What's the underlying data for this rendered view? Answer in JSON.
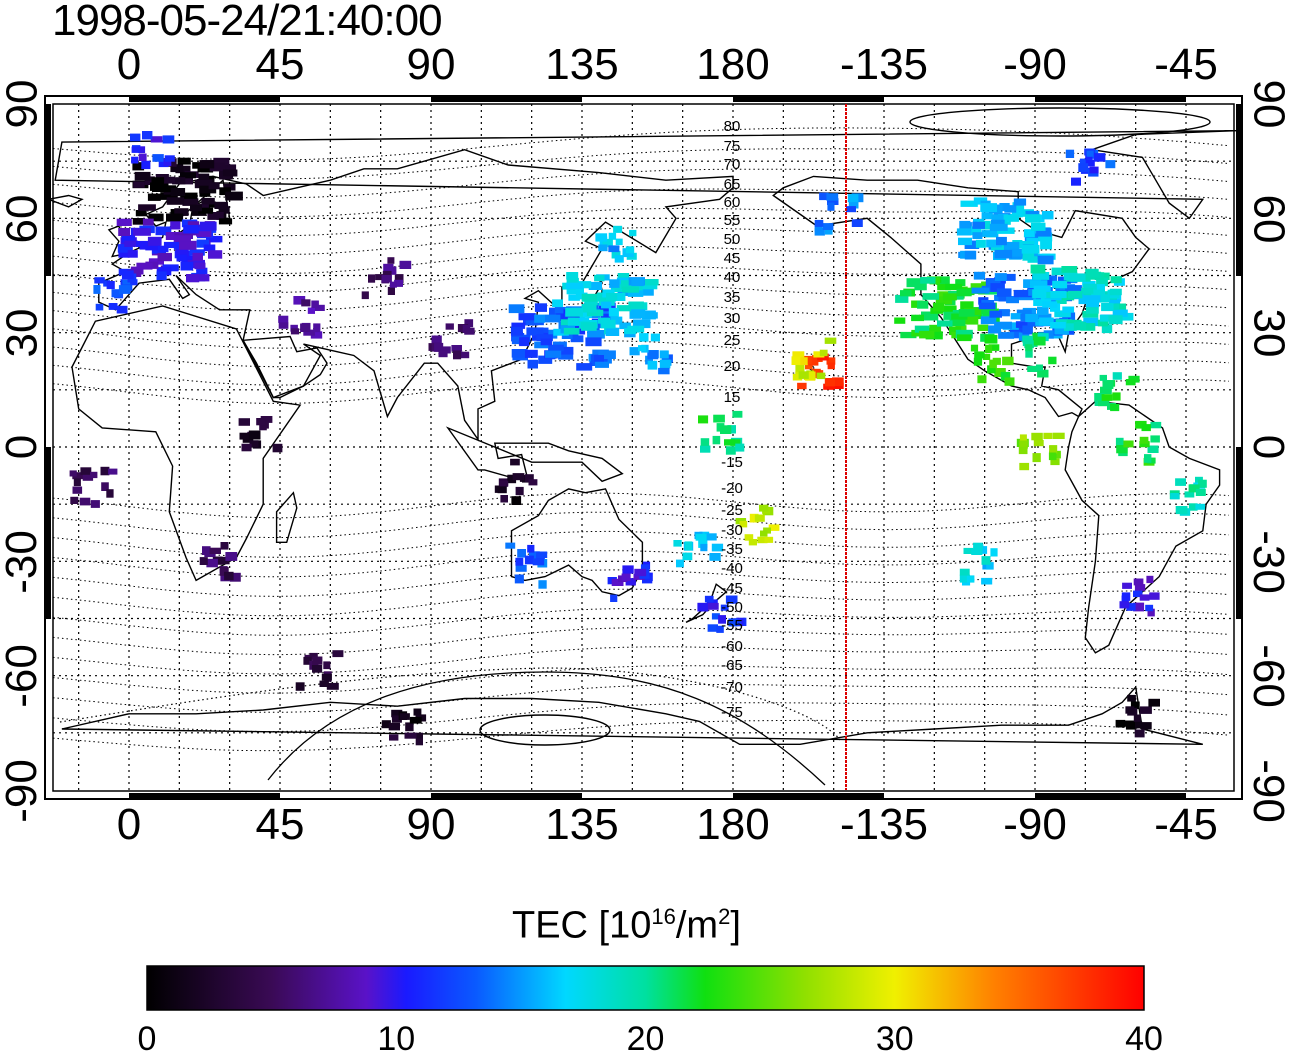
{
  "title": "1998-05-24/21:40:00",
  "lon_ticks": [
    "0",
    "45",
    "90",
    "135",
    "180",
    "-135",
    "-90",
    "-45"
  ],
  "lat_ticks": [
    "90",
    "60",
    "30",
    "0",
    "-30",
    "-60",
    "-90"
  ],
  "contour_labels_north": [
    "80",
    "75",
    "70",
    "65",
    "60",
    "55",
    "50",
    "45",
    "40",
    "35",
    "30",
    "25",
    "20",
    "15"
  ],
  "contour_labels_south": [
    "-15",
    "-20",
    "-25",
    "-30",
    "-35",
    "-40",
    "-45",
    "-50",
    "-55",
    "-60",
    "-65",
    "-70",
    "-75"
  ],
  "colorbar": {
    "label_main": "TEC  [10",
    "label_sup1": "16",
    "label_mid": "/m",
    "label_sup2": "2",
    "label_end": "]",
    "ticks": [
      "0",
      "10",
      "20",
      "30",
      "40"
    ],
    "min": 0,
    "max": 40
  },
  "colors": {
    "terminator": "#dd0000",
    "coast": "#000000"
  },
  "tec_clusters": [
    {
      "region": "north-europe",
      "lon": 15,
      "lat": 68,
      "tec": 1
    },
    {
      "region": "europe",
      "lon": 10,
      "lat": 52,
      "tec": 10
    },
    {
      "region": "europe-west",
      "lon": -5,
      "lat": 42,
      "tec": 12
    },
    {
      "region": "greenland-atlantic",
      "lon": 5,
      "lat": 80,
      "tec": 11
    },
    {
      "region": "central-asia",
      "lon": 75,
      "lat": 45,
      "tec": 6
    },
    {
      "region": "middle-east",
      "lon": 50,
      "lat": 35,
      "tec": 7
    },
    {
      "region": "india-tibet",
      "lon": 95,
      "lat": 30,
      "tec": 5
    },
    {
      "region": "east-asia",
      "lon": 127,
      "lat": 30,
      "tec": 13
    },
    {
      "region": "japan",
      "lon": 140,
      "lat": 38,
      "tec": 17
    },
    {
      "region": "siberia-east",
      "lon": 145,
      "lat": 55,
      "tec": 16
    },
    {
      "region": "pacific-north",
      "lon": 155,
      "lat": 25,
      "tec": 15
    },
    {
      "region": "hawaii",
      "lon": -155,
      "lat": 20,
      "tec": 38
    },
    {
      "region": "hawaii-edge",
      "lon": -158,
      "lat": 24,
      "tec": 29
    },
    {
      "region": "pacific-mid",
      "lon": 175,
      "lat": 5,
      "tec": 21
    },
    {
      "region": "pacific-south",
      "lon": 185,
      "lat": -20,
      "tec": 28
    },
    {
      "region": "fiji",
      "lon": 168,
      "lat": -25,
      "tec": 17
    },
    {
      "region": "new-zealand",
      "lon": 175,
      "lat": -42,
      "tec": 11
    },
    {
      "region": "australia-east",
      "lon": 148,
      "lat": -35,
      "tec": 10
    },
    {
      "region": "australia-west",
      "lon": 117,
      "lat": -30,
      "tec": 13
    },
    {
      "region": "indonesia",
      "lon": 115,
      "lat": -8,
      "tec": 2
    },
    {
      "region": "africa-east",
      "lon": 38,
      "lat": 5,
      "tec": 3
    },
    {
      "region": "africa-south",
      "lon": 25,
      "lat": -28,
      "tec": 5
    },
    {
      "region": "africa-west",
      "lon": -12,
      "lat": -10,
      "tec": 5
    },
    {
      "region": "antarctica-ring",
      "lon": 80,
      "lat": -72,
      "tec": 2
    },
    {
      "region": "southern-ocean",
      "lon": 55,
      "lat": -58,
      "tec": 4
    },
    {
      "region": "alaska",
      "lon": -150,
      "lat": 62,
      "tec": 14
    },
    {
      "region": "canada",
      "lon": -100,
      "lat": 58,
      "tec": 16
    },
    {
      "region": "arctic-canada",
      "lon": -75,
      "lat": 75,
      "tec": 12
    },
    {
      "region": "usa-west",
      "lon": -118,
      "lat": 37,
      "tec": 22
    },
    {
      "region": "usa-central",
      "lon": -95,
      "lat": 38,
      "tec": 14
    },
    {
      "region": "usa-east",
      "lon": -78,
      "lat": 40,
      "tec": 18
    },
    {
      "region": "mexico",
      "lon": -105,
      "lat": 22,
      "tec": 23
    },
    {
      "region": "gulf",
      "lon": -88,
      "lat": 25,
      "tec": 20
    },
    {
      "region": "caribbean",
      "lon": -68,
      "lat": 15,
      "tec": 21
    },
    {
      "region": "south-america-north",
      "lon": -60,
      "lat": 2,
      "tec": 22
    },
    {
      "region": "south-america-east",
      "lon": -45,
      "lat": -12,
      "tec": 19
    },
    {
      "region": "south-america-south",
      "lon": -60,
      "lat": -38,
      "tec": 10
    },
    {
      "region": "patagonia",
      "lon": -62,
      "lat": -70,
      "tec": 1
    },
    {
      "region": "galapagos",
      "lon": -90,
      "lat": 0,
      "tec": 26
    },
    {
      "region": "easter",
      "lon": -108,
      "lat": -30,
      "tec": 17
    }
  ]
}
